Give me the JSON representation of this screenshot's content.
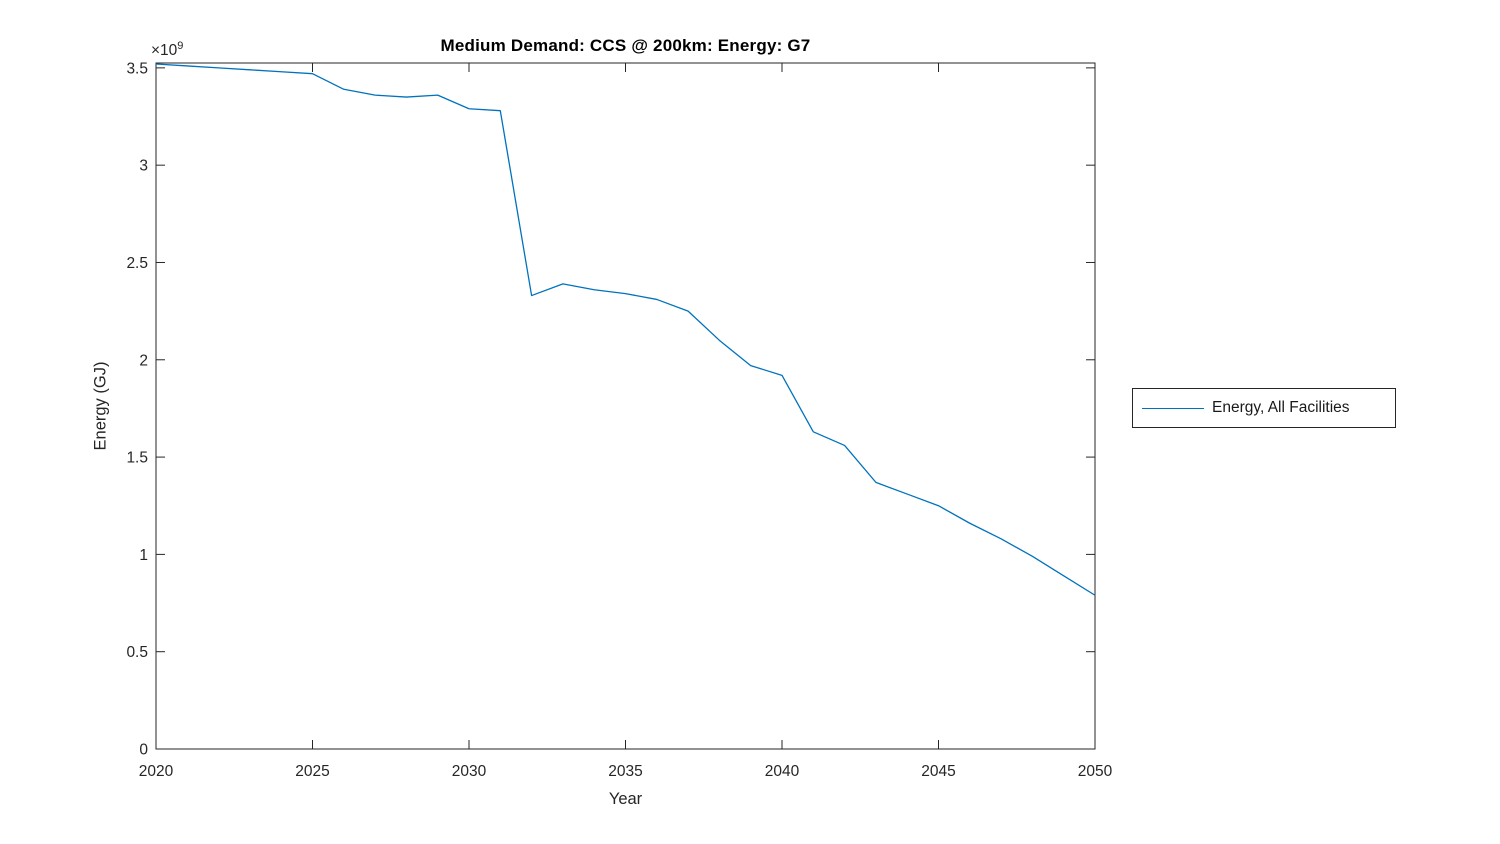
{
  "figure": {
    "background_color": "#ffffff",
    "axis_color": "#262626",
    "tick_label_color": "#262626",
    "title_color": "#000000"
  },
  "chart_data": {
    "type": "line",
    "title": "Medium Demand: CCS @ 200km: Energy: G7",
    "xlabel": "Year",
    "ylabel": "Energy (GJ)",
    "y_axis_multiplier_label": {
      "base": "×10",
      "exponent": "9"
    },
    "grid": false,
    "box": true,
    "xlim": [
      2020,
      2050
    ],
    "ylim": [
      0,
      3525000000.0
    ],
    "x_ticks": [
      2020,
      2025,
      2030,
      2035,
      2040,
      2045,
      2050
    ],
    "y_ticks": [
      0,
      500000000.0,
      1000000000.0,
      1500000000.0,
      2000000000.0,
      2500000000.0,
      3000000000.0,
      3500000000.0
    ],
    "y_tick_labels": [
      "0",
      "0.5",
      "1",
      "1.5",
      "2",
      "2.5",
      "3",
      "3.5"
    ],
    "legend": {
      "position": "right-outside",
      "border": true,
      "entries": [
        "Energy, All Facilities"
      ]
    },
    "x": [
      2020,
      2021,
      2022,
      2023,
      2024,
      2025,
      2026,
      2027,
      2028,
      2029,
      2030,
      2031,
      2032,
      2033,
      2034,
      2035,
      2036,
      2037,
      2038,
      2039,
      2040,
      2041,
      2042,
      2043,
      2044,
      2045,
      2046,
      2047,
      2048,
      2049,
      2050
    ],
    "series": [
      {
        "name": "Energy, All Facilities",
        "color": "#0072BD",
        "line_width": 1.3,
        "values": [
          3520000000.0,
          3510000000.0,
          3500000000.0,
          3490000000.0,
          3480000000.0,
          3470000000.0,
          3390000000.0,
          3360000000.0,
          3350000000.0,
          3360000000.0,
          3290000000.0,
          3280000000.0,
          2330000000.0,
          2390000000.0,
          2360000000.0,
          2340000000.0,
          2310000000.0,
          2250000000.0,
          2100000000.0,
          1970000000.0,
          1920000000.0,
          1630000000.0,
          1560000000.0,
          1370000000.0,
          1310000000.0,
          1250000000.0,
          1160000000.0,
          1080000000.0,
          990000000.0,
          890000000.0,
          790000000.0
        ]
      }
    ]
  }
}
